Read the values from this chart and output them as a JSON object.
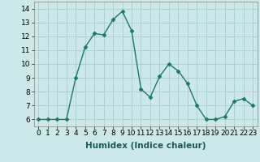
{
  "x": [
    0,
    1,
    2,
    3,
    4,
    5,
    6,
    7,
    8,
    9,
    10,
    11,
    12,
    13,
    14,
    15,
    16,
    17,
    18,
    19,
    20,
    21,
    22,
    23
  ],
  "y": [
    6,
    6,
    6,
    6,
    9,
    11.2,
    12.2,
    12.1,
    13.2,
    13.8,
    12.4,
    8.2,
    7.6,
    9.1,
    10.0,
    9.5,
    8.6,
    7.0,
    6.0,
    6.0,
    6.2,
    7.3,
    7.5,
    7.0
  ],
  "line_color": "#1a7a6a",
  "marker_color": "#1a7a6a",
  "bg_color": "#cce8e8",
  "grid_color": "#aacccc",
  "xlabel": "Humidex (Indice chaleur)",
  "ylim": [
    5.5,
    14.5
  ],
  "xlim": [
    -0.5,
    23.5
  ],
  "yticks": [
    6,
    7,
    8,
    9,
    10,
    11,
    12,
    13,
    14
  ],
  "xticks": [
    0,
    1,
    2,
    3,
    4,
    5,
    6,
    7,
    8,
    9,
    10,
    11,
    12,
    13,
    14,
    15,
    16,
    17,
    18,
    19,
    20,
    21,
    22,
    23
  ],
  "xlabel_fontsize": 7.5,
  "tick_fontsize": 6.5,
  "line_width": 1.0,
  "marker_size": 2.5
}
